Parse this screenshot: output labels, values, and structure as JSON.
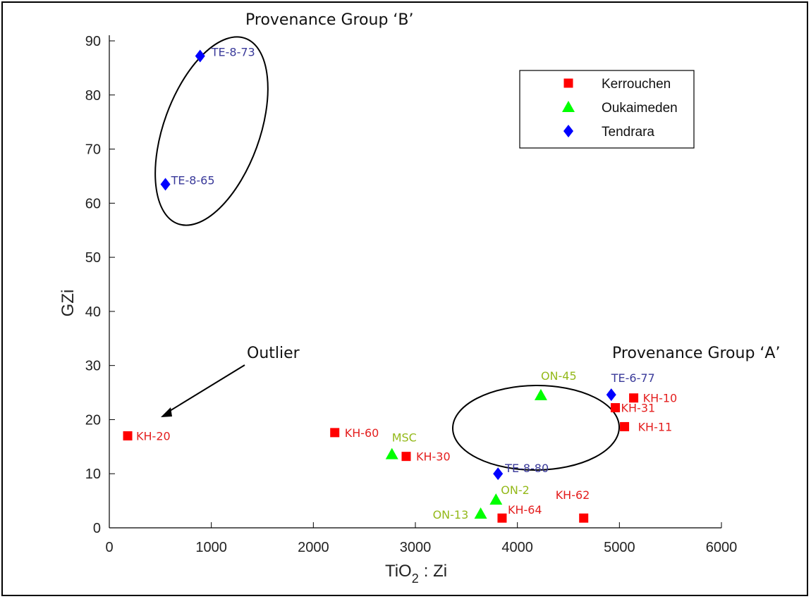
{
  "chart_data": {
    "type": "scatter",
    "xlabel": "TiO",
    "xlabel_sub": "2",
    "xlabel_suffix": ": Zi",
    "ylabel": "GZi",
    "xlim": [
      0,
      6000
    ],
    "ylim": [
      0,
      90
    ],
    "xticks": [
      0,
      1000,
      2000,
      3000,
      4000,
      5000,
      6000
    ],
    "yticks": [
      0,
      10,
      20,
      30,
      40,
      50,
      60,
      70,
      80,
      90
    ],
    "grid": false,
    "legend_position": "top-right",
    "series": [
      {
        "name": "Kerrouchen",
        "marker": "square",
        "color": "#ff0000",
        "label_color": "#e41e1e",
        "points": [
          {
            "label": "KH-20",
            "x": 180,
            "y": 17
          },
          {
            "label": "KH-60",
            "x": 2210,
            "y": 17.6
          },
          {
            "label": "KH-30",
            "x": 2910,
            "y": 13.2
          },
          {
            "label": "KH-64",
            "x": 3850,
            "y": 1.8
          },
          {
            "label": "KH-62",
            "x": 4650,
            "y": 1.8
          },
          {
            "label": "KH-10",
            "x": 5140,
            "y": 24
          },
          {
            "label": "KH-31",
            "x": 4960,
            "y": 22.2
          },
          {
            "label": "KH-11",
            "x": 5050,
            "y": 18.7
          }
        ]
      },
      {
        "name": "Oukaimeden",
        "marker": "triangle",
        "color": "#00ff00",
        "label_color": "#94b91a",
        "points": [
          {
            "label": "ON-45",
            "x": 4230,
            "y": 24.5
          },
          {
            "label": "MSC",
            "x": 2770,
            "y": 13.6
          },
          {
            "label": "ON-2",
            "x": 3790,
            "y": 5.2
          },
          {
            "label": "ON-13",
            "x": 3640,
            "y": 2.6
          }
        ]
      },
      {
        "name": "Tendrara",
        "marker": "diamond",
        "color": "#0000ff",
        "label_color": "#3a3a9a",
        "points": [
          {
            "label": "TE-8-73",
            "x": 890,
            "y": 87.2
          },
          {
            "label": "TE-8-65",
            "x": 550,
            "y": 63.5
          },
          {
            "label": "TE-6-77",
            "x": 4920,
            "y": 24.6
          },
          {
            "label": "TE-8-80",
            "x": 3810,
            "y": 10
          }
        ]
      }
    ],
    "annotations": {
      "group_b": "Provenance Group ‘B’",
      "group_a": "Provenance Group ‘A’",
      "outlier": "Outlier"
    }
  }
}
